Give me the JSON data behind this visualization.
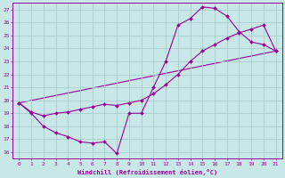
{
  "xlabel": "Windchill (Refroidissement éolien,°C)",
  "bg_color": "#c8e8e8",
  "line_color": "#990099",
  "grid_color": "#aacccc",
  "xlim": [
    -0.5,
    21.5
  ],
  "ylim": [
    15.5,
    27.5
  ],
  "xticks": [
    0,
    1,
    2,
    3,
    4,
    5,
    6,
    7,
    8,
    9,
    10,
    11,
    12,
    13,
    14,
    15,
    16,
    17,
    18,
    19,
    20,
    21
  ],
  "yticks": [
    16,
    17,
    18,
    19,
    20,
    21,
    22,
    23,
    24,
    25,
    26,
    27
  ],
  "series1_x": [
    0,
    1,
    2,
    3,
    4,
    5,
    6,
    7,
    8,
    9,
    10,
    11,
    12,
    13,
    14,
    15,
    16,
    17,
    18,
    19,
    20,
    21
  ],
  "series1_y": [
    19.8,
    19.0,
    18.0,
    17.5,
    17.2,
    16.8,
    16.7,
    16.8,
    15.9,
    19.0,
    19.0,
    21.0,
    23.0,
    25.8,
    26.3,
    27.2,
    27.1,
    26.5,
    25.3,
    24.5,
    24.3,
    23.8
  ],
  "series2_x": [
    0,
    1,
    2,
    3,
    4,
    5,
    6,
    7,
    8,
    9,
    10,
    11,
    12,
    13,
    14,
    15,
    16,
    17,
    18,
    19,
    20,
    21
  ],
  "series2_y": [
    19.8,
    19.1,
    18.8,
    19.0,
    19.1,
    19.3,
    19.5,
    19.7,
    19.6,
    19.8,
    20.0,
    20.5,
    21.2,
    22.0,
    23.0,
    23.8,
    24.3,
    24.8,
    25.2,
    25.5,
    25.8,
    23.8
  ],
  "series3_x": [
    0,
    21
  ],
  "series3_y": [
    19.8,
    23.8
  ]
}
